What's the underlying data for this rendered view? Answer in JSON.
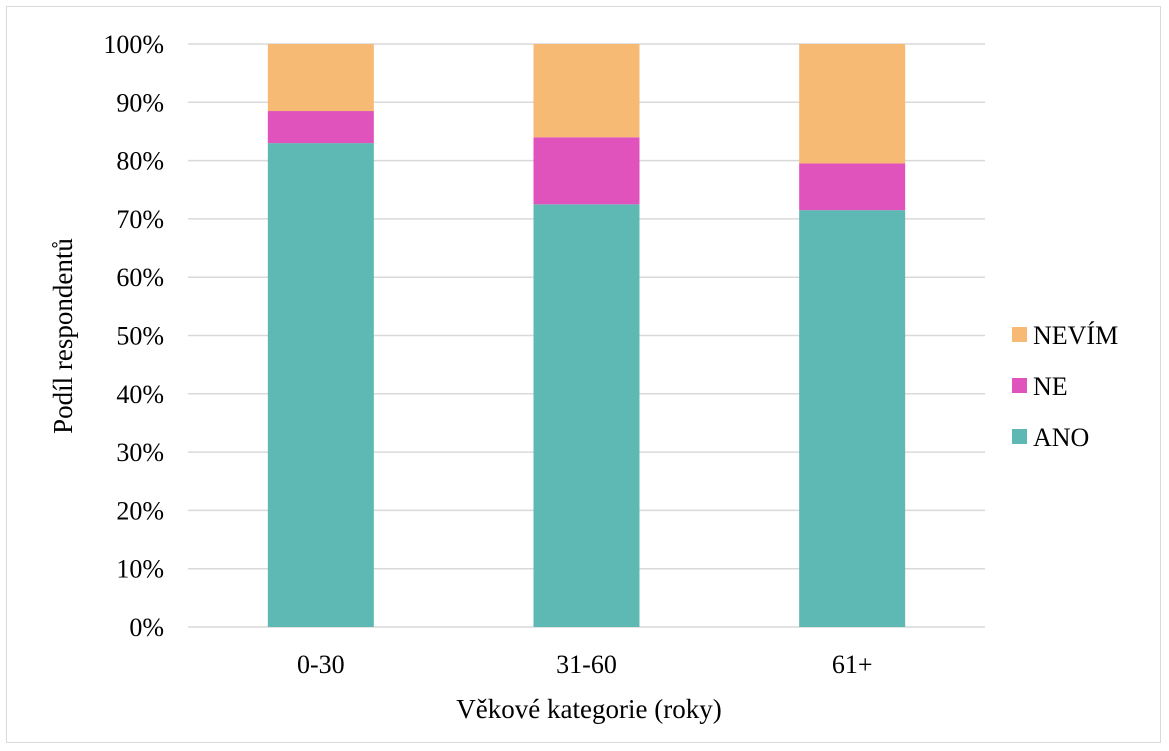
{
  "chart_data": {
    "type": "bar",
    "stacked": true,
    "percent_stacked": true,
    "categories": [
      "0-30",
      "31-60",
      "61+"
    ],
    "series": [
      {
        "name": "ANO",
        "values": [
          83,
          72.5,
          71.5
        ]
      },
      {
        "name": "NE",
        "values": [
          5.5,
          11.5,
          8
        ]
      },
      {
        "name": "NEVÍM",
        "values": [
          11.5,
          16,
          20.5
        ]
      }
    ],
    "xlabel": "Věkové kategorie (roky)",
    "ylabel": "Podíl respondentů",
    "ylim": [
      0,
      100
    ],
    "yticks": [
      "0%",
      "10%",
      "20%",
      "30%",
      "40%",
      "50%",
      "60%",
      "70%",
      "80%",
      "90%",
      "100%"
    ],
    "grid": true,
    "legend_position": "right",
    "colors": {
      "ANO": "#5eb8b4",
      "NE": "#e052bc",
      "NEVÍM": "#f6ba74"
    },
    "gridline_color": "#d9d9d9"
  }
}
